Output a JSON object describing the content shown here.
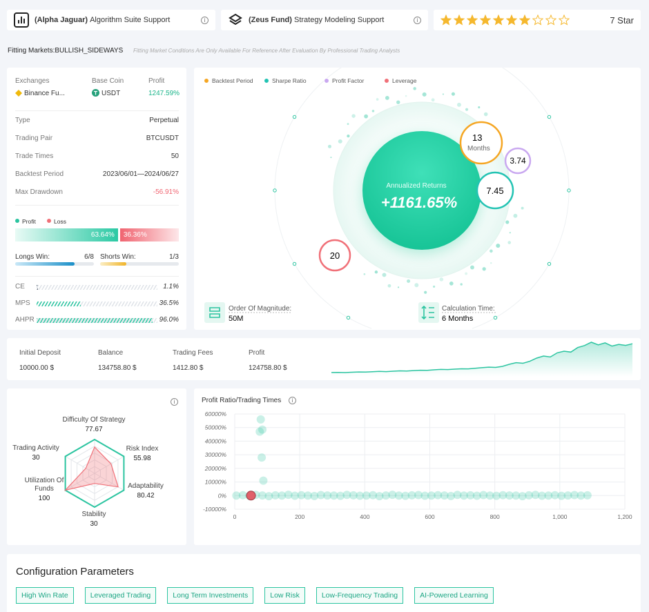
{
  "header": {
    "cards": [
      {
        "name": "(Alpha Jaguar)",
        "text": "Algorithm Suite Support"
      },
      {
        "name": "(Zeus Fund)",
        "text": "Strategy Modeling Support"
      }
    ],
    "rating": {
      "value": 7,
      "max": 10,
      "label": "7 Star",
      "color": "#f5b82e"
    }
  },
  "fitting": {
    "label": "Fitting Markets:BULLISH_SIDEWAYS",
    "note": "Fitting Market Conditions Are Only Available For Reference After Evaluation By Professional Trading Analysts"
  },
  "overview": {
    "headers": [
      "Exchanges",
      "Base Coin",
      "Profit"
    ],
    "values": [
      "Binance Fu...",
      "USDT",
      "1247.59%"
    ],
    "rows": [
      [
        "Type",
        "Perpetual"
      ],
      [
        "Trading Pair",
        "BTCUSDT"
      ],
      [
        "Trade Times",
        "50"
      ],
      [
        "Backtest Period",
        "2023/06/01—2024/06/27"
      ],
      [
        "Max Drawdown",
        "-56.91%"
      ]
    ],
    "legend": [
      "Profit",
      "Loss"
    ],
    "profit": {
      "value": 63.64,
      "label": "63.64%"
    },
    "loss": {
      "value": 36.36,
      "label": "36.36%"
    },
    "longs": {
      "name": "Longs Win:",
      "wins": 6,
      "total": 8,
      "label": "6/8"
    },
    "shorts": {
      "name": "Shorts Win:",
      "wins": 1,
      "total": 3,
      "label": "1/3"
    },
    "metrics": [
      {
        "name": "CE",
        "value": 1.1,
        "label": "1.1%",
        "color": "#5a6473"
      },
      {
        "name": "MPS",
        "value": 36.5,
        "label": "36.5%",
        "color": "#2bc4a0"
      },
      {
        "name": "AHPR",
        "value": 96.0,
        "label": "96.0%",
        "color": "#2bc4a0"
      }
    ]
  },
  "returns": {
    "legend": [
      {
        "name": "Backtest Period",
        "color": "#f5a623"
      },
      {
        "name": "Sharpe Ratio",
        "color": "#22c3b3"
      },
      {
        "name": "Profit Factor",
        "color": "#c9a8f0"
      },
      {
        "name": "Leverage",
        "color": "#f07078"
      }
    ],
    "title": "Annualized Returns",
    "value": "+1161.65%",
    "backtest": {
      "value": 13,
      "unit": "Months"
    },
    "sharpe": 7.45,
    "profit_factor": 3.74,
    "leverage": 20,
    "magnitude": {
      "label": "Order Of Magnitude:",
      "value": "50M"
    },
    "calc_time": {
      "label": "Calculation Time:",
      "value": "6 Months"
    }
  },
  "summary": {
    "items": [
      [
        "Initial Deposit",
        "10000.00 $"
      ],
      [
        "Balance",
        "134758.80 $"
      ],
      [
        "Trading Fees",
        "1412.80 $"
      ],
      [
        "Profit",
        "124758.80 $"
      ]
    ],
    "equity": [
      10000,
      10400,
      9800,
      11200,
      12500,
      11900,
      13400,
      14800,
      14100,
      15900,
      17200,
      16800,
      18500,
      20100,
      19400,
      21800,
      23500,
      22900,
      24700,
      26300,
      25800,
      28400,
      30900,
      33500,
      32100,
      36800,
      45500,
      52700,
      50100,
      58900,
      72400,
      81600,
      77300,
      95200,
      102400,
      98600,
      118300,
      126900,
      141200,
      129800,
      138500,
      124600,
      131900,
      127400,
      134758.8
    ],
    "color": "#2bc4a0"
  },
  "radar": {
    "axes": [
      {
        "name": "Difficulty Of Strategy",
        "value": 77.67
      },
      {
        "name": "Risk Index",
        "value": 55.98
      },
      {
        "name": "Adaptability",
        "value": 80.42
      },
      {
        "name": "Stability",
        "value": 30
      },
      {
        "name": "Utilization Of Funds",
        "value": 100
      },
      {
        "name": "Trading Activity",
        "value": 30
      }
    ],
    "rlim": [
      0,
      100
    ],
    "color": "#f07078"
  },
  "scatter": {
    "title": "Profit Ratio/Trading Times",
    "xlim": [
      0,
      1200
    ],
    "ylim": [
      -10000,
      60000
    ],
    "xticks": [
      0,
      200,
      400,
      600,
      800,
      {
        "value": 1000,
        "label": "1,000"
      },
      {
        "value": 1200,
        "label": "1,200"
      }
    ],
    "yticks": [
      {
        "value": -10000,
        "label": "-10000%"
      },
      {
        "value": 0,
        "label": "0%"
      },
      {
        "value": 10000,
        "label": "10000%"
      },
      {
        "value": 20000,
        "label": "20000%"
      },
      {
        "value": 30000,
        "label": "30000%"
      },
      {
        "value": 40000,
        "label": "40000%"
      },
      {
        "value": 50000,
        "label": "50000%"
      },
      {
        "value": 60000,
        "label": "60000%"
      }
    ],
    "x": [
      80,
      77,
      85,
      83,
      88,
      5,
      25,
      45,
      65,
      85,
      105,
      125,
      145,
      165,
      185,
      205,
      225,
      245,
      265,
      285,
      305,
      325,
      345,
      365,
      385,
      405,
      425,
      445,
      465,
      485,
      505,
      525,
      545,
      565,
      585,
      605,
      625,
      645,
      665,
      685,
      705,
      725,
      745,
      765,
      785,
      805,
      825,
      845,
      865,
      885,
      905,
      925,
      945,
      965,
      985,
      1005,
      1025,
      1045,
      1065,
      1085
    ],
    "y": [
      56000,
      47000,
      48500,
      28000,
      11000,
      0,
      300,
      -200,
      500,
      100,
      -400,
      200,
      0,
      600,
      -100,
      300,
      0,
      -300,
      400,
      100,
      0,
      -200,
      500,
      200,
      -100,
      0,
      300,
      -400,
      100,
      600,
      0,
      -200,
      200,
      400,
      -100,
      0,
      300,
      100,
      -300,
      500,
      0,
      200,
      -100,
      400,
      0,
      -200,
      300,
      100,
      0,
      -400,
      200,
      500,
      -100,
      0,
      300,
      -200,
      100,
      400,
      0,
      200
    ],
    "highlight": {
      "x": 50,
      "y": 0
    },
    "color": "#2bc4a0",
    "highlight_color": "#e0606a"
  },
  "config": {
    "title": "Configuration Parameters",
    "tags": [
      "High Win Rate",
      "Leveraged Trading",
      "Long Term Investments",
      "Low Risk",
      "Low-Frequency Trading",
      "AI-Powered Learning"
    ]
  }
}
